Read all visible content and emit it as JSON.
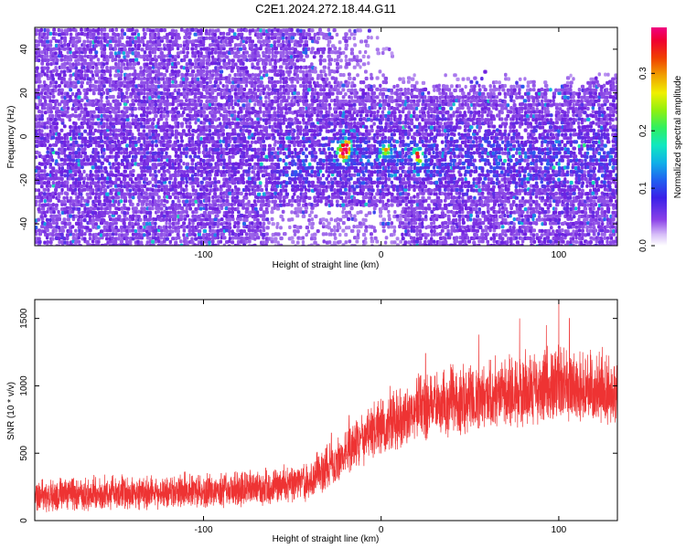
{
  "title": "C2E1.2024.272.18.44.G11",
  "chart_data": [
    {
      "type": "heatmap",
      "xlabel": "Height of straight line (km)",
      "ylabel": "Frequency (Hz)",
      "xlim": [
        -195,
        133
      ],
      "ylim": [
        -50,
        50
      ],
      "x_ticks": [
        -100,
        0,
        100
      ],
      "y_ticks": [
        -40,
        -20,
        0,
        20,
        40
      ],
      "colorbar": {
        "label": "Normalized spectral amplitude",
        "range": [
          0.0,
          0.38
        ],
        "ticks": [
          0.0,
          0.1,
          0.2,
          0.3
        ],
        "colors": [
          "#ffffff",
          "#b890f0",
          "#7020e0",
          "#3050f0",
          "#10b0e0",
          "#20f0a0",
          "#60f020",
          "#f0f000",
          "#f08000",
          "#f00000",
          "#f00060"
        ]
      },
      "features": {
        "band_center_hz": -10,
        "peak_height_km": -22,
        "peak_frequency_hz": -7,
        "peak_amplitude": 0.35
      }
    },
    {
      "type": "line",
      "xlabel": "Height of straight line (km)",
      "ylabel": "SNR (10 * v/v)",
      "xlim": [
        -195,
        133
      ],
      "ylim": [
        0,
        1640
      ],
      "x_ticks": [
        -100,
        0,
        100
      ],
      "y_ticks": [
        0,
        500,
        1000,
        1500
      ],
      "color": "#ee3333",
      "trend": {
        "x": [
          -195,
          -160,
          -120,
          -90,
          -60,
          -40,
          -25,
          -10,
          0,
          20,
          40,
          60,
          80,
          100,
          115,
          133
        ],
        "y": [
          150,
          165,
          180,
          190,
          220,
          260,
          400,
          560,
          640,
          760,
          820,
          860,
          900,
          930,
          920,
          880
        ]
      },
      "noise_spread": [
        -130,
        230
      ],
      "spikes": [
        {
          "x": -90,
          "y": 350
        },
        {
          "x": -65,
          "y": 390
        },
        {
          "x": -45,
          "y": 330
        },
        {
          "x": -28,
          "y": 650
        },
        {
          "x": -18,
          "y": 780
        },
        {
          "x": 5,
          "y": 1000
        },
        {
          "x": 25,
          "y": 1240
        },
        {
          "x": 55,
          "y": 1380
        },
        {
          "x": 78,
          "y": 1500
        },
        {
          "x": 93,
          "y": 1450
        },
        {
          "x": 100,
          "y": 1650
        },
        {
          "x": 106,
          "y": 1500
        },
        {
          "x": 118,
          "y": 1230
        }
      ]
    }
  ]
}
